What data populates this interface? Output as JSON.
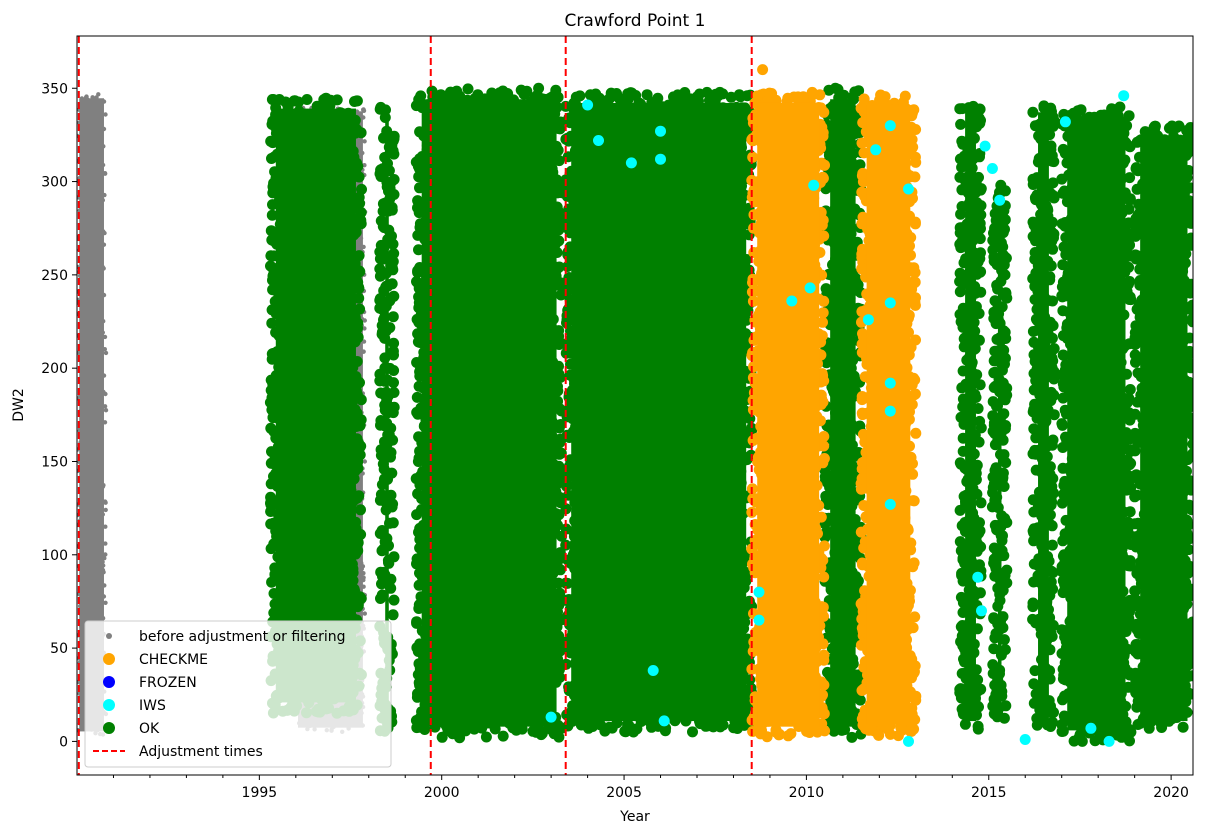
{
  "chart_data": {
    "type": "scatter",
    "title": "Crawford Point 1",
    "xlabel": "Year",
    "ylabel": "DW2",
    "xlim": [
      1990.0,
      2020.6
    ],
    "ylim": [
      -18,
      378
    ],
    "x_ticks": [
      1995,
      2000,
      2005,
      2010,
      2015,
      2020
    ],
    "y_ticks": [
      0,
      50,
      100,
      150,
      200,
      250,
      300,
      350
    ],
    "grid": false,
    "legend_position": "lower-left",
    "adjustment_times": [
      1990.05,
      1999.7,
      2003.4,
      2008.5
    ],
    "series": [
      {
        "name": "before adjustment or filtering",
        "color": "#808080",
        "marker": "small-dot",
        "segments": [
          [
            1990.0,
            1990.8,
            3,
            347
          ],
          [
            1996.0,
            1997.9,
            5,
            340
          ]
        ]
      },
      {
        "name": "CHECKME",
        "color": "#ffa500",
        "marker": "dot",
        "segments": [
          [
            2008.5,
            2010.5,
            2,
            348
          ],
          [
            2011.5,
            2013.0,
            3,
            347
          ]
        ],
        "outliers": [
          [
            2008.8,
            360
          ],
          [
            2009.5,
            3
          ],
          [
            2010.3,
            5
          ]
        ]
      },
      {
        "name": "FROZEN",
        "color": "#0000ff",
        "marker": "dot",
        "segments": []
      },
      {
        "name": "IWS",
        "color": "#00ffff",
        "marker": "dot",
        "points": [
          [
            2004.0,
            341
          ],
          [
            2004.3,
            322
          ],
          [
            2005.2,
            310
          ],
          [
            2006.0,
            327
          ],
          [
            2006.0,
            312
          ],
          [
            2005.8,
            38
          ],
          [
            2006.1,
            11
          ],
          [
            2003.0,
            13
          ],
          [
            2008.7,
            80
          ],
          [
            2008.7,
            65
          ],
          [
            2009.6,
            236
          ],
          [
            2010.1,
            243
          ],
          [
            2010.2,
            298
          ],
          [
            2011.7,
            226
          ],
          [
            2011.9,
            317
          ],
          [
            2012.3,
            330
          ],
          [
            2012.3,
            235
          ],
          [
            2012.3,
            192
          ],
          [
            2012.3,
            177
          ],
          [
            2012.3,
            127
          ],
          [
            2012.8,
            296
          ],
          [
            2012.8,
            0
          ],
          [
            2014.9,
            319
          ],
          [
            2015.1,
            307
          ],
          [
            2015.3,
            290
          ],
          [
            2014.7,
            88
          ],
          [
            2014.8,
            70
          ],
          [
            2016.0,
            1
          ],
          [
            2018.7,
            346
          ],
          [
            2017.8,
            7
          ],
          [
            2018.3,
            0
          ],
          [
            2017.1,
            332
          ]
        ]
      },
      {
        "name": "OK",
        "color": "#008000",
        "marker": "dot",
        "segments": [
          [
            1995.3,
            1997.8,
            15,
            345
          ],
          [
            1998.3,
            1998.7,
            5,
            340
          ],
          [
            1999.3,
            2003.3,
            2,
            350
          ],
          [
            2003.4,
            2008.5,
            5,
            348
          ],
          [
            2010.5,
            2011.5,
            2,
            350
          ],
          [
            2014.2,
            2014.8,
            5,
            343
          ],
          [
            2015.1,
            2015.5,
            10,
            300
          ],
          [
            2016.2,
            2016.8,
            5,
            343
          ],
          [
            2017.0,
            2018.9,
            0,
            340
          ],
          [
            2019.0,
            2020.6,
            5,
            330
          ]
        ]
      }
    ]
  },
  "legend": {
    "entries": [
      {
        "label": "before adjustment or filtering",
        "color": "#808080",
        "kind": "small-dot"
      },
      {
        "label": "CHECKME",
        "color": "#ffa500",
        "kind": "dot"
      },
      {
        "label": "FROZEN",
        "color": "#0000ff",
        "kind": "dot"
      },
      {
        "label": "IWS",
        "color": "#00ffff",
        "kind": "dot"
      },
      {
        "label": "OK",
        "color": "#008000",
        "kind": "dot"
      },
      {
        "label": "Adjustment times",
        "color": "#ff0000",
        "kind": "dashed-line"
      }
    ]
  }
}
